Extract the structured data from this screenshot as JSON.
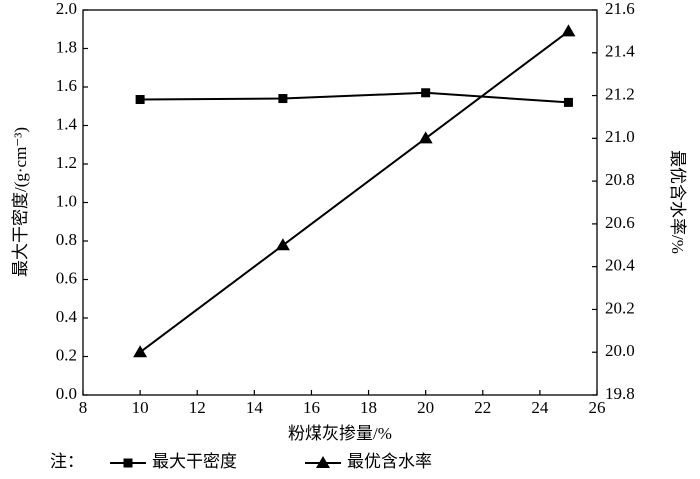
{
  "chart_data": {
    "type": "line",
    "x_label": "粉煤灰掺量/%",
    "y_label": "最大干密度/(g·cm⁻³)",
    "y2_label": "最优含水率/%",
    "legend_note": "注：",
    "x": [
      10,
      15,
      20,
      25
    ],
    "series": [
      {
        "name": "最大干密度",
        "color": "#000000",
        "marker": "square",
        "values": [
          1.535,
          1.54,
          1.57,
          1.52
        ]
      },
      {
        "name": "最优含水率",
        "color": "#000000",
        "marker": "triangle",
        "axis": "y2",
        "values": [
          20.0,
          20.5,
          21.0,
          21.5
        ]
      }
    ],
    "xlim": [
      8,
      26
    ],
    "xticks": [
      8,
      10,
      12,
      14,
      16,
      18,
      20,
      22,
      24,
      26
    ],
    "ylim": [
      0,
      2
    ],
    "yticks": [
      {
        "value": 0,
        "label": "0.0"
      },
      0.2,
      0.4,
      0.6,
      0.8,
      {
        "value": 1,
        "label": "1.0"
      },
      1.2,
      1.4,
      1.6,
      1.8,
      {
        "value": 2,
        "label": "2.0"
      }
    ],
    "y2lim": [
      19.8,
      21.6
    ],
    "y2ticks": [
      19.8,
      {
        "value": 20,
        "label": "20.0"
      },
      20.2,
      20.4,
      20.6,
      20.8,
      {
        "value": 21,
        "label": "21.0"
      },
      21.2,
      21.4,
      21.6
    ],
    "legend": "bottom"
  }
}
